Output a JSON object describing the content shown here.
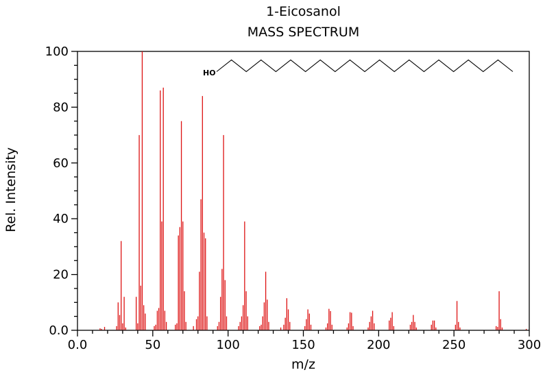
{
  "title": "1-Eicosanol",
  "subtitle": "MASS SPECTRUM",
  "molecule": {
    "label": "HO",
    "bonds": 20
  },
  "chart_data": {
    "type": "bar",
    "title": "1-Eicosanol MASS SPECTRUM",
    "xlabel": "m/z",
    "ylabel": "Rel. Intensity",
    "xlim": [
      0,
      300
    ],
    "ylim": [
      0,
      100
    ],
    "x_major_ticks": [
      0,
      50,
      100,
      150,
      200,
      250,
      300
    ],
    "x_tick_labels": [
      "0.0",
      "50",
      "100",
      "150",
      "200",
      "250",
      "300"
    ],
    "x_minor_step": 10,
    "y_major_ticks": [
      0,
      20,
      40,
      60,
      80,
      100
    ],
    "y_tick_labels": [
      "0.0",
      "20",
      "40",
      "60",
      "80",
      "100"
    ],
    "y_minor_step": 5,
    "grid": false,
    "bar_color": "#dd1111",
    "axis_color": "#000000",
    "peaks": [
      [
        15,
        0.7
      ],
      [
        16,
        0.5
      ],
      [
        18,
        1.2
      ],
      [
        26,
        1.5
      ],
      [
        27,
        10
      ],
      [
        28,
        5.5
      ],
      [
        29,
        32
      ],
      [
        30,
        2.5
      ],
      [
        31,
        12
      ],
      [
        32,
        1
      ],
      [
        39,
        12
      ],
      [
        40,
        2.5
      ],
      [
        41,
        70
      ],
      [
        42,
        16
      ],
      [
        43,
        100
      ],
      [
        44,
        9
      ],
      [
        45,
        6
      ],
      [
        51,
        1.5
      ],
      [
        52,
        2
      ],
      [
        53,
        7
      ],
      [
        54,
        8
      ],
      [
        55,
        86
      ],
      [
        56,
        39
      ],
      [
        57,
        87
      ],
      [
        58,
        7
      ],
      [
        59,
        3
      ],
      [
        65,
        2
      ],
      [
        66,
        2.5
      ],
      [
        67,
        34
      ],
      [
        68,
        37
      ],
      [
        69,
        75
      ],
      [
        70,
        39
      ],
      [
        71,
        14
      ],
      [
        72,
        3
      ],
      [
        77,
        1.5
      ],
      [
        79,
        4
      ],
      [
        80,
        5
      ],
      [
        81,
        21
      ],
      [
        82,
        47
      ],
      [
        83,
        84
      ],
      [
        84,
        35
      ],
      [
        85,
        33
      ],
      [
        86,
        5
      ],
      [
        93,
        1.5
      ],
      [
        94,
        3
      ],
      [
        95,
        12
      ],
      [
        96,
        22
      ],
      [
        97,
        70
      ],
      [
        98,
        18
      ],
      [
        99,
        5
      ],
      [
        107,
        1.5
      ],
      [
        108,
        3
      ],
      [
        109,
        5
      ],
      [
        110,
        9
      ],
      [
        111,
        39
      ],
      [
        112,
        14
      ],
      [
        113,
        5
      ],
      [
        121,
        1.5
      ],
      [
        122,
        2
      ],
      [
        123,
        5
      ],
      [
        124,
        10
      ],
      [
        125,
        21
      ],
      [
        126,
        11
      ],
      [
        127,
        3
      ],
      [
        135,
        1
      ],
      [
        137,
        2
      ],
      [
        138,
        4.5
      ],
      [
        139,
        11.5
      ],
      [
        140,
        7.5
      ],
      [
        141,
        3
      ],
      [
        151,
        1.5
      ],
      [
        152,
        4
      ],
      [
        153,
        7.5
      ],
      [
        154,
        6
      ],
      [
        155,
        2
      ],
      [
        165,
        1
      ],
      [
        166,
        2.5
      ],
      [
        167,
        7.7
      ],
      [
        168,
        6.9
      ],
      [
        169,
        2
      ],
      [
        179,
        1
      ],
      [
        180,
        2.5
      ],
      [
        181,
        6.5
      ],
      [
        182,
        6.3
      ],
      [
        183,
        1.5
      ],
      [
        193,
        1
      ],
      [
        194,
        3
      ],
      [
        195,
        5
      ],
      [
        196,
        7
      ],
      [
        197,
        2.5
      ],
      [
        207,
        3.5
      ],
      [
        208,
        4.5
      ],
      [
        209,
        6.5
      ],
      [
        210,
        1.5
      ],
      [
        221,
        2
      ],
      [
        222,
        3
      ],
      [
        223,
        5.5
      ],
      [
        224,
        3
      ],
      [
        225,
        1
      ],
      [
        235,
        2
      ],
      [
        236,
        3.5
      ],
      [
        237,
        3.5
      ],
      [
        238,
        1
      ],
      [
        251,
        2
      ],
      [
        252,
        10.5
      ],
      [
        253,
        3
      ],
      [
        254,
        1
      ],
      [
        278,
        1.5
      ],
      [
        279,
        1.2
      ],
      [
        280,
        14
      ],
      [
        281,
        4
      ],
      [
        282,
        1
      ],
      [
        298,
        0.5
      ]
    ]
  }
}
